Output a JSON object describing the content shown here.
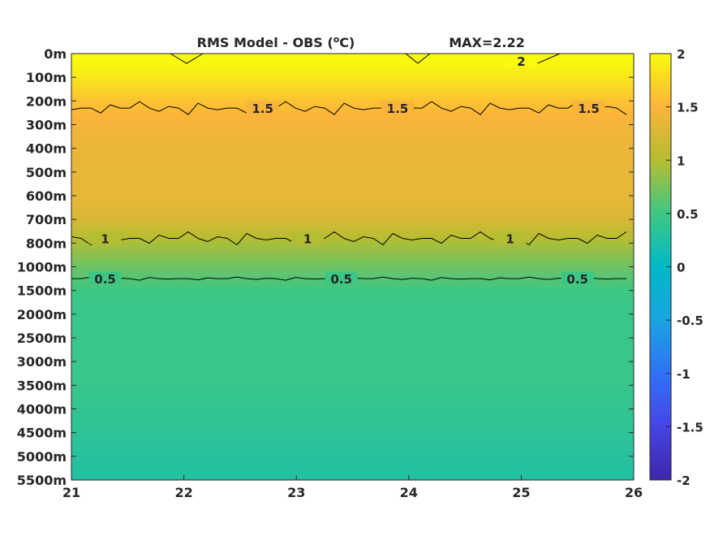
{
  "chart_data": {
    "type": "heatmap",
    "title": "RMS Model - OBS (",
    "title_unit_sup": "o",
    "title_unit": "C)",
    "annotation": "MAX=2.22",
    "x_ticks": [
      "21",
      "22",
      "23",
      "24",
      "25",
      "26"
    ],
    "xlim": [
      21,
      26
    ],
    "y_ticks": [
      "0m",
      "100m",
      "200m",
      "300m",
      "400m",
      "500m",
      "600m",
      "700m",
      "800m",
      "1000m",
      "1500m",
      "2000m",
      "2500m",
      "3000m",
      "3500m",
      "4000m",
      "4500m",
      "5000m",
      "5500m"
    ],
    "row_values": [
      2.05,
      1.85,
      1.6,
      1.45,
      1.38,
      1.36,
      1.36,
      1.25,
      0.95,
      0.7,
      0.5,
      0.45,
      0.46,
      0.46,
      0.45,
      0.4,
      0.36,
      0.31,
      0.28
    ],
    "clim": [
      -2,
      2
    ],
    "colorbar_ticks": [
      "2",
      "1.5",
      "1",
      "0.5",
      "0",
      "-0.5",
      "-1",
      "-1.5",
      "-2"
    ],
    "colormap": [
      "#3e26a8",
      "#4745e6",
      "#2f72f5",
      "#1aa4e0",
      "#00b9c6",
      "#3ec784",
      "#b5bd32",
      "#fbb43a",
      "#f9fb0e"
    ],
    "contours": [
      {
        "level": "2",
        "depth_index": 0.3,
        "labels_at_x": [
          25.0
        ]
      },
      {
        "level": "1.5",
        "depth_index": 2.3,
        "labels_at_x": [
          22.7,
          23.9,
          25.6
        ]
      },
      {
        "level": "1",
        "depth_index": 7.8,
        "labels_at_x": [
          21.3,
          23.1,
          24.9
        ]
      },
      {
        "level": "0.5",
        "depth_index": 9.5,
        "labels_at_x": [
          21.3,
          23.4,
          25.5
        ]
      }
    ]
  }
}
